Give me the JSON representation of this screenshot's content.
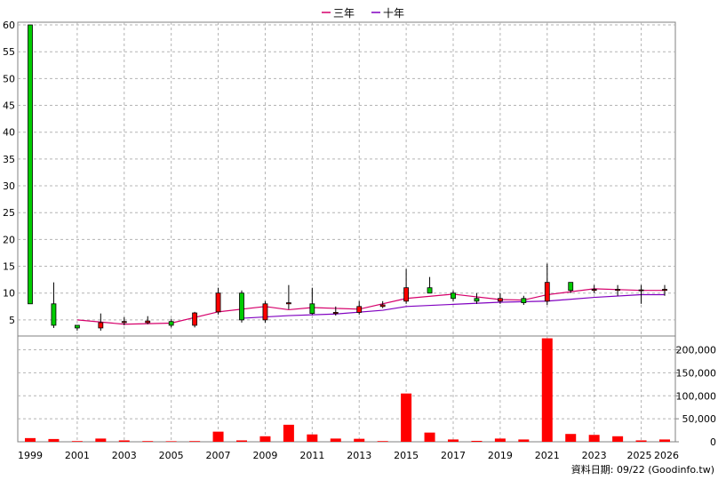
{
  "footer_note": "資料日期: 09/22  (Goodinfo.tw)",
  "colors": {
    "up_candle": "#ff0000",
    "down_candle": "#00cc00",
    "volume": "#ff0000",
    "ma3": "#d6006b",
    "ma10": "#8000c0",
    "grid": "#b4b4b4"
  },
  "chart_data": [
    {
      "type": "candlestick",
      "legend": [
        {
          "name": "三年",
          "color": "#d6006b"
        },
        {
          "name": "十年",
          "color": "#8000c0"
        }
      ],
      "legend_position": "top-center",
      "grid": true,
      "ylim": [
        2,
        60.5
      ],
      "y_ticks": [
        5,
        10,
        15,
        20,
        25,
        30,
        35,
        40,
        45,
        50,
        55,
        60
      ],
      "x_range": [
        1999,
        2026
      ],
      "x_tick_labels": [
        "1999",
        "2001",
        "2003",
        "2005",
        "2007",
        "2009",
        "2011",
        "2013",
        "2015",
        "2017",
        "2019",
        "2021",
        "2023",
        "2025",
        "2026"
      ],
      "candles": [
        {
          "year": 1999,
          "open": 60,
          "high": 60,
          "low": 8,
          "close": 8
        },
        {
          "year": 2000,
          "open": 8,
          "high": 12,
          "low": 3.5,
          "close": 4
        },
        {
          "year": 2001,
          "open": 4,
          "high": 4,
          "low": 3,
          "close": 3.5
        },
        {
          "year": 2002,
          "open": 3.5,
          "high": 6.2,
          "low": 3,
          "close": 4.5
        },
        {
          "year": 2003,
          "open": 4.5,
          "high": 5.5,
          "low": 4,
          "close": 4.7
        },
        {
          "year": 2004,
          "open": 4.5,
          "high": 5.7,
          "low": 4.2,
          "close": 4.8
        },
        {
          "year": 2005,
          "open": 4.7,
          "high": 5.2,
          "low": 3.6,
          "close": 4
        },
        {
          "year": 2006,
          "open": 4,
          "high": 6.5,
          "low": 3.6,
          "close": 6.3
        },
        {
          "year": 2007,
          "open": 6.5,
          "high": 11,
          "low": 6,
          "close": 10
        },
        {
          "year": 2008,
          "open": 10,
          "high": 10.5,
          "low": 4.5,
          "close": 5
        },
        {
          "year": 2009,
          "open": 5,
          "high": 8.5,
          "low": 4.5,
          "close": 8
        },
        {
          "year": 2010,
          "open": 8,
          "high": 11.5,
          "low": 7,
          "close": 8.2
        },
        {
          "year": 2011,
          "open": 8,
          "high": 11,
          "low": 6,
          "close": 6.2
        },
        {
          "year": 2012,
          "open": 6.2,
          "high": 7.5,
          "low": 5.8,
          "close": 6.4
        },
        {
          "year": 2013,
          "open": 6.4,
          "high": 8.5,
          "low": 6,
          "close": 7.5
        },
        {
          "year": 2014,
          "open": 7.5,
          "high": 8.5,
          "low": 7.2,
          "close": 7.8
        },
        {
          "year": 2015,
          "open": 8.5,
          "high": 14.5,
          "low": 8,
          "close": 11
        },
        {
          "year": 2016,
          "open": 11,
          "high": 13,
          "low": 10,
          "close": 10
        },
        {
          "year": 2017,
          "open": 10,
          "high": 10.5,
          "low": 8.5,
          "close": 9
        },
        {
          "year": 2018,
          "open": 9,
          "high": 10,
          "low": 8,
          "close": 8.5
        },
        {
          "year": 2019,
          "open": 8.5,
          "high": 10,
          "low": 8,
          "close": 9
        },
        {
          "year": 2020,
          "open": 9,
          "high": 9.5,
          "low": 7.8,
          "close": 8.2
        },
        {
          "year": 2021,
          "open": 8.5,
          "high": 15.5,
          "low": 7.8,
          "close": 12
        },
        {
          "year": 2022,
          "open": 12,
          "high": 12,
          "low": 10,
          "close": 10.5
        },
        {
          "year": 2023,
          "open": 10.5,
          "high": 11.5,
          "low": 10,
          "close": 10.7
        },
        {
          "year": 2024,
          "open": 10.5,
          "high": 11.5,
          "low": 9.5,
          "close": 10.7
        },
        {
          "year": 2025,
          "open": 10.5,
          "high": 11.5,
          "low": 8,
          "close": 10.6
        },
        {
          "year": 2026,
          "open": 10.5,
          "high": 11.5,
          "low": 9.5,
          "close": 10.7
        }
      ],
      "series": [
        {
          "name": "三年",
          "x": [
            2001,
            2003,
            2005,
            2007,
            2009,
            2010,
            2011,
            2013,
            2015,
            2017,
            2019,
            2020,
            2021,
            2023,
            2025,
            2026
          ],
          "values": [
            5,
            4.2,
            4.4,
            6.5,
            7.5,
            6.9,
            7.3,
            7.0,
            9.0,
            9.8,
            8.8,
            8.7,
            9.7,
            10.8,
            10.5,
            10.5
          ]
        },
        {
          "name": "十年",
          "x": [
            2008,
            2010,
            2012,
            2014,
            2015,
            2017,
            2019,
            2021,
            2023,
            2025,
            2026
          ],
          "values": [
            5.3,
            5.8,
            6.1,
            6.8,
            7.5,
            7.9,
            8.3,
            8.5,
            9.2,
            9.7,
            9.7
          ]
        }
      ]
    },
    {
      "type": "bar",
      "name": "volume",
      "grid": true,
      "ylim": [
        0,
        230000
      ],
      "y_ticks": [
        0,
        50000,
        100000,
        150000,
        200000
      ],
      "y_tick_labels": [
        "0",
        "50,000",
        "100,000",
        "150,000",
        "200,000"
      ],
      "categories": [
        1999,
        2000,
        2001,
        2002,
        2003,
        2004,
        2005,
        2006,
        2007,
        2008,
        2009,
        2010,
        2011,
        2012,
        2013,
        2014,
        2015,
        2016,
        2017,
        2018,
        2019,
        2020,
        2021,
        2022,
        2023,
        2024,
        2025,
        2026
      ],
      "values": [
        8000,
        6000,
        1500,
        7000,
        3000,
        1500,
        1200,
        1500,
        22000,
        3000,
        12000,
        37000,
        16000,
        7000,
        6500,
        1500,
        105000,
        20000,
        5000,
        2000,
        7000,
        5000,
        225000,
        17000,
        15000,
        12000,
        3000,
        5000
      ]
    }
  ]
}
